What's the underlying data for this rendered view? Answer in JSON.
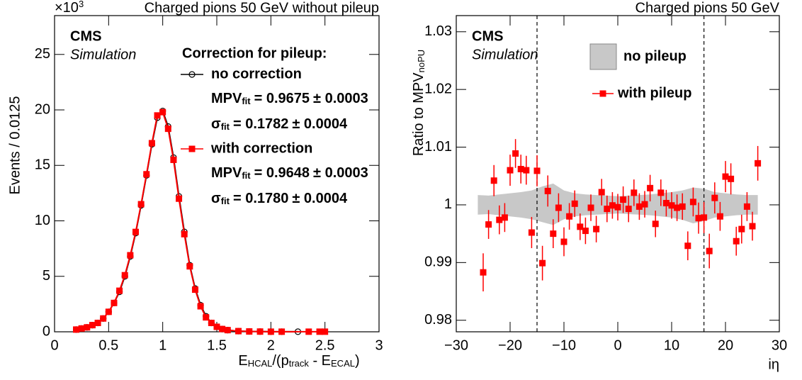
{
  "chart_data": [
    {
      "type": "line",
      "title": "Charged pions 50 GeV without pileup",
      "experiment": "CMS",
      "status": "Simulation",
      "y_multiplier": {
        "base": "×10",
        "exponent": "3"
      },
      "xlabel_parts": [
        "E",
        "HCAL",
        "/(p",
        "track",
        " - E",
        "ECAL",
        ")"
      ],
      "ylabel": "Events / 0.0125",
      "xlim": [
        0,
        3
      ],
      "ylim": [
        0,
        28.5
      ],
      "xticks": [
        0,
        0.5,
        1,
        1.5,
        2,
        2.5,
        3
      ],
      "yticks": [
        0,
        5,
        10,
        15,
        20,
        25
      ],
      "legend_title": "Correction for pileup:",
      "series": [
        {
          "name": "no correction",
          "color": "#000000",
          "marker": "open-circle",
          "x": [
            0.2,
            0.25,
            0.3,
            0.35,
            0.4,
            0.45,
            0.5,
            0.55,
            0.6,
            0.65,
            0.7,
            0.75,
            0.8,
            0.85,
            0.9,
            0.95,
            1.0,
            1.05,
            1.1,
            1.15,
            1.2,
            1.25,
            1.3,
            1.35,
            1.4,
            1.45,
            1.5,
            1.55,
            1.6,
            1.7,
            1.8,
            1.9,
            2.0,
            2.1,
            2.25
          ],
          "values": [
            0.2,
            0.3,
            0.4,
            0.6,
            0.8,
            1.2,
            1.8,
            2.6,
            3.6,
            5.0,
            6.8,
            8.9,
            11.4,
            14.1,
            16.9,
            19.3,
            19.9,
            18.5,
            15.7,
            12.2,
            9.0,
            6.0,
            3.9,
            2.4,
            1.4,
            0.8,
            0.45,
            0.25,
            0.15,
            0.06,
            0.03,
            0.02,
            0.01,
            0.01,
            0.01
          ],
          "fit": [
            {
              "label": "MPV",
              "sub": "fit",
              "value": "= 0.9675",
              "error": "± 0.0003"
            },
            {
              "label": "σ",
              "sub": "fit",
              "value": "= 0.1782",
              "error": "± 0.0004"
            }
          ]
        },
        {
          "name": "with correction",
          "color": "#ff0000",
          "marker": "square",
          "x": [
            0.2,
            0.25,
            0.3,
            0.35,
            0.4,
            0.45,
            0.5,
            0.55,
            0.6,
            0.65,
            0.7,
            0.75,
            0.8,
            0.85,
            0.9,
            0.95,
            1.0,
            1.05,
            1.1,
            1.15,
            1.2,
            1.25,
            1.3,
            1.35,
            1.4,
            1.45,
            1.5,
            1.55,
            1.6,
            1.7,
            1.8,
            1.9,
            2.0,
            2.1,
            2.35,
            2.45,
            2.5
          ],
          "values": [
            0.2,
            0.3,
            0.4,
            0.6,
            0.8,
            1.2,
            1.8,
            2.6,
            3.7,
            5.1,
            6.9,
            9.0,
            11.5,
            14.2,
            17.0,
            19.5,
            19.8,
            18.3,
            15.5,
            12.0,
            8.8,
            5.9,
            3.8,
            2.3,
            1.3,
            0.8,
            0.45,
            0.25,
            0.15,
            0.06,
            0.03,
            0.02,
            0.01,
            0.01,
            0.01,
            0.01,
            0.01
          ],
          "fit": [
            {
              "label": "MPV",
              "sub": "fit",
              "value": "= 0.9648",
              "error": "± 0.0003"
            },
            {
              "label": "σ",
              "sub": "fit",
              "value": "= 0.1780",
              "error": "± 0.0004"
            }
          ]
        }
      ]
    },
    {
      "type": "errorbar",
      "title": "Charged pions 50 GeV",
      "experiment": "CMS",
      "status": "Simulation",
      "xlabel": "iη",
      "ylabel_parts": [
        "Ratio to MPV",
        "noPU"
      ],
      "xlim": [
        -30,
        30
      ],
      "ylim": [
        0.978,
        1.0328
      ],
      "xticks": [
        {
          "value": -30,
          "label": "−30"
        },
        {
          "value": -20,
          "label": "−20"
        },
        {
          "value": -10,
          "label": "−10"
        },
        0,
        10,
        20,
        30
      ],
      "yticks": [
        0.98,
        0.99,
        1,
        1.01,
        1.02,
        1.03
      ],
      "vlines": [
        -15,
        16
      ],
      "band": {
        "name": "no pileup",
        "color": "#c8c8c8",
        "x": [
          -26,
          -24,
          -22,
          -20,
          -18,
          -16,
          -14,
          -12,
          -10,
          -8,
          -6,
          -4,
          -2,
          0,
          2,
          4,
          6,
          8,
          10,
          12,
          14,
          16,
          18,
          20,
          22,
          24,
          26
        ],
        "upper": [
          1.0017,
          1.0016,
          1.0018,
          1.002,
          1.0022,
          1.0025,
          1.0032,
          1.0037,
          1.0025,
          1.002,
          1.0018,
          1.0017,
          1.0016,
          1.0015,
          1.0016,
          1.0017,
          1.0018,
          1.002,
          1.0022,
          1.0025,
          1.003,
          1.0028,
          1.0022,
          1.002,
          1.0018,
          1.0017,
          1.0017
        ],
        "lower": [
          0.9983,
          0.9984,
          0.9982,
          0.998,
          0.9978,
          0.9975,
          0.997,
          0.9965,
          0.9975,
          0.998,
          0.9982,
          0.9983,
          0.9984,
          0.9985,
          0.9984,
          0.9983,
          0.9982,
          0.998,
          0.9978,
          0.9974,
          0.9968,
          0.9972,
          0.9978,
          0.998,
          0.9982,
          0.9983,
          0.9983
        ]
      },
      "series": [
        {
          "name": "with pileup",
          "color": "#ff0000",
          "marker": "square",
          "x": [
            -25,
            -24,
            -23,
            -22,
            -21,
            -20,
            -19,
            -18,
            -17,
            -16,
            -15,
            -14,
            -13,
            -12,
            -11,
            -10,
            -9,
            -8,
            -7,
            -6,
            -5,
            -4,
            -3,
            -2,
            -1,
            0,
            1,
            2,
            3,
            4,
            5,
            6,
            7,
            8,
            9,
            10,
            11,
            12,
            13,
            14,
            15,
            16,
            17,
            18,
            19,
            20,
            21,
            22,
            23,
            24,
            25,
            26
          ],
          "values": [
            0.9883,
            0.9966,
            1.0042,
            0.9974,
            0.9978,
            1.006,
            1.0089,
            1.0062,
            1.006,
            0.9952,
            1.0059,
            0.9899,
            1.0024,
            0.995,
            0.9995,
            0.9936,
            0.998,
            1.0002,
            0.9962,
            0.9955,
            0.9995,
            0.9958,
            1.0022,
            0.9993,
            0.9999,
            0.9996,
            1.0009,
            0.9993,
            1.0021,
            0.9997,
            1.0001,
            1.0029,
            0.9967,
            1.0021,
            1.0003,
            0.9999,
            0.9995,
            0.9997,
            0.9929,
            1.0005,
            0.9977,
            0.9978,
            0.992,
            1.0012,
            0.998,
            1.0049,
            1.0045,
            0.9937,
            0.9958,
            0.9997,
            0.9963,
            1.0072
          ],
          "errors": [
            0.0033,
            0.0025,
            0.0027,
            0.0025,
            0.0025,
            0.0027,
            0.0025,
            0.0025,
            0.0025,
            0.0027,
            0.0027,
            0.003,
            0.0027,
            0.0025,
            0.0025,
            0.0025,
            0.0023,
            0.0023,
            0.0023,
            0.0023,
            0.0023,
            0.0023,
            0.0023,
            0.0023,
            0.0023,
            0.0023,
            0.0023,
            0.0023,
            0.0023,
            0.0023,
            0.0023,
            0.0023,
            0.0023,
            0.0023,
            0.0023,
            0.0023,
            0.0023,
            0.0023,
            0.0025,
            0.0025,
            0.0027,
            0.0027,
            0.003,
            0.0027,
            0.0025,
            0.0027,
            0.0027,
            0.0025,
            0.0025,
            0.0025,
            0.0025,
            0.003
          ]
        }
      ]
    }
  ]
}
